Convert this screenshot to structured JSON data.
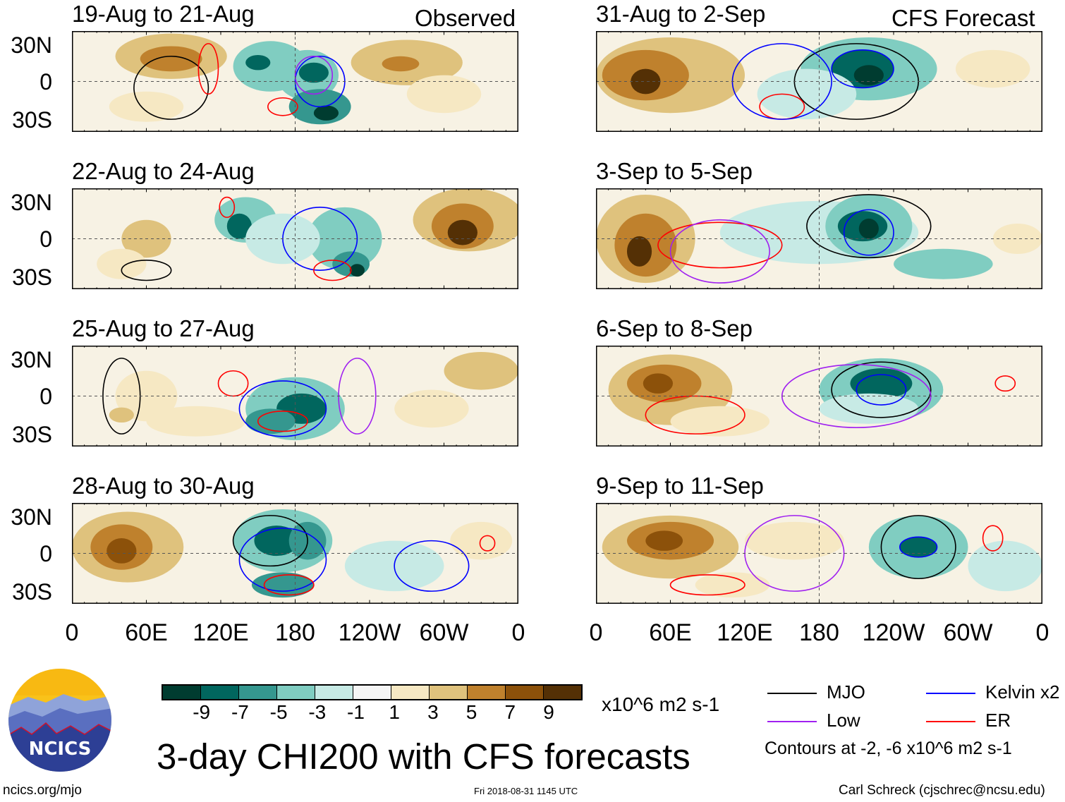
{
  "chart_data": {
    "type": "heatmap",
    "title": "3-day CHI200 with CFS forecasts",
    "units": "x10^6 m2 s-1",
    "lat_ticks": [
      "30N",
      "0",
      "30S"
    ],
    "lon_ticks": [
      "0",
      "60E",
      "120E",
      "180",
      "120W",
      "60W",
      "0"
    ],
    "headers": {
      "left": "Observed",
      "right": "CFS Forecast"
    },
    "panels": [
      {
        "title": "19-Aug to 21-Aug",
        "column": "left",
        "row": 0,
        "type": "observed"
      },
      {
        "title": "22-Aug to 24-Aug",
        "column": "left",
        "row": 1,
        "type": "observed"
      },
      {
        "title": "25-Aug to 27-Aug",
        "column": "left",
        "row": 2,
        "type": "observed"
      },
      {
        "title": "28-Aug to 30-Aug",
        "column": "left",
        "row": 3,
        "type": "observed"
      },
      {
        "title": "31-Aug to 2-Sep",
        "column": "right",
        "row": 0,
        "type": "forecast"
      },
      {
        "title": "3-Sep to 5-Sep",
        "column": "right",
        "row": 1,
        "type": "forecast"
      },
      {
        "title": "6-Sep to 8-Sep",
        "column": "right",
        "row": 2,
        "type": "forecast"
      },
      {
        "title": "9-Sep to 11-Sep",
        "column": "right",
        "row": 3,
        "type": "forecast"
      }
    ],
    "colorbar": {
      "labels": [
        "-9",
        "-7",
        "-5",
        "-3",
        "-1",
        "1",
        "3",
        "5",
        "7",
        "9"
      ],
      "colors": [
        "#003c30",
        "#01665e",
        "#35978f",
        "#80cdc1",
        "#c7eae5",
        "#f5f5f5",
        "#f6e8c3",
        "#dfc27d",
        "#bf812d",
        "#8c510a",
        "#543005"
      ]
    },
    "legend": [
      {
        "label": "MJO",
        "color": "#000000"
      },
      {
        "label": "Kelvin x2",
        "color": "#0000ff"
      },
      {
        "label": "Low",
        "color": "#a020f0"
      },
      {
        "label": "ER",
        "color": "#ff0000"
      }
    ],
    "contour_note": "Contours at -2, -6 x10^6 m2 s-1"
  },
  "footer": {
    "left": "ncics.org/mjo",
    "center": "Fri 2018-08-31 1145 UTC",
    "right": "Carl Schreck (cjschrec@ncsu.edu)"
  },
  "logo": {
    "text": "NCICS"
  }
}
